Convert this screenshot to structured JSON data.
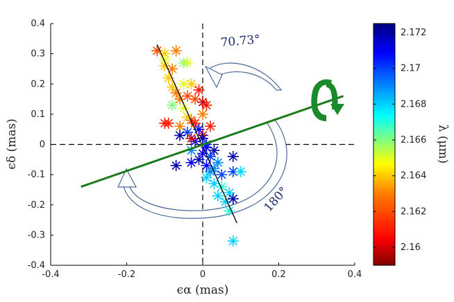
{
  "chart_data": {
    "type": "scatter",
    "xlabel": "ϵα (mas)",
    "ylabel": "ϵδ (mas)",
    "xlim": [
      -0.4,
      0.4
    ],
    "ylim": [
      -0.4,
      0.4
    ],
    "xticks": [
      "-0.4",
      "-0.2",
      "0",
      "0.2",
      "0.4"
    ],
    "yticks": [
      "0.4",
      "0.3",
      "0.2",
      "0.1",
      "0",
      "-0.1",
      "-0.2",
      "-0.3",
      "-0.4"
    ],
    "colorbar": {
      "label": "λ (μm)",
      "range": [
        2.159,
        2.1725
      ],
      "ticks": [
        "2.172",
        "2.17",
        "2.168",
        "2.166",
        "2.164",
        "2.162",
        "2.16"
      ],
      "colors": [
        "#7f0000",
        "#ff0000",
        "#ff8000",
        "#ffff00",
        "#80ff80",
        "#00ffff",
        "#0080ff",
        "#0000ff",
        "#00007f"
      ]
    },
    "fit_line": {
      "x": [
        -0.12,
        0.09
      ],
      "y": [
        0.33,
        -0.26
      ],
      "color": "#000000"
    },
    "rotated_line": {
      "x": [
        -0.32,
        0.37
      ],
      "y": [
        -0.14,
        0.16
      ],
      "color": "#1a7a1a"
    },
    "annotations": [
      {
        "text": "70.73°",
        "x": 0.1,
        "y": 0.33,
        "rotate": -5
      },
      {
        "text": "180°",
        "x": 0.2,
        "y": -0.19,
        "rotate": -48
      }
    ],
    "rotation_symbol_color": "#1a8a2a",
    "points": [
      {
        "x": -0.12,
        "y": 0.31,
        "l": 2.162
      },
      {
        "x": -0.1,
        "y": 0.3,
        "l": 2.164
      },
      {
        "x": -0.1,
        "y": 0.28,
        "l": 2.165
      },
      {
        "x": -0.1,
        "y": 0.26,
        "l": 2.164
      },
      {
        "x": -0.08,
        "y": 0.25,
        "l": 2.163
      },
      {
        "x": -0.07,
        "y": 0.31,
        "l": 2.163
      },
      {
        "x": -0.05,
        "y": 0.27,
        "l": 2.166
      },
      {
        "x": -0.04,
        "y": 0.27,
        "l": 2.165
      },
      {
        "x": -0.09,
        "y": 0.22,
        "l": 2.164
      },
      {
        "x": -0.08,
        "y": 0.19,
        "l": 2.164
      },
      {
        "x": -0.05,
        "y": 0.2,
        "l": 2.165
      },
      {
        "x": -0.07,
        "y": 0.17,
        "l": 2.163
      },
      {
        "x": -0.06,
        "y": 0.15,
        "l": 2.163
      },
      {
        "x": -0.04,
        "y": 0.16,
        "l": 2.162
      },
      {
        "x": -0.08,
        "y": 0.13,
        "l": 2.166
      },
      {
        "x": -0.05,
        "y": 0.12,
        "l": 2.165
      },
      {
        "x": -0.03,
        "y": 0.2,
        "l": 2.164
      },
      {
        "x": -0.02,
        "y": 0.15,
        "l": 2.162
      },
      {
        "x": -0.01,
        "y": 0.18,
        "l": 2.161
      },
      {
        "x": 0.0,
        "y": 0.1,
        "l": 2.163
      },
      {
        "x": -0.03,
        "y": 0.08,
        "l": 2.162
      },
      {
        "x": -0.06,
        "y": 0.06,
        "l": 2.163
      },
      {
        "x": -0.04,
        "y": 0.09,
        "l": 2.164
      },
      {
        "x": -0.02,
        "y": 0.07,
        "l": 2.161
      },
      {
        "x": 0.01,
        "y": 0.13,
        "l": 2.161
      },
      {
        "x": 0.02,
        "y": 0.06,
        "l": 2.161
      },
      {
        "x": 0.0,
        "y": 0.03,
        "l": 2.16
      },
      {
        "x": -0.09,
        "y": 0.07,
        "l": 2.161
      },
      {
        "x": -0.01,
        "y": 0.05,
        "l": 2.171
      },
      {
        "x": -0.04,
        "y": 0.04,
        "l": 2.17
      },
      {
        "x": -0.06,
        "y": 0.03,
        "l": 2.172
      },
      {
        "x": -0.02,
        "y": 0.01,
        "l": 2.171
      },
      {
        "x": 0.0,
        "y": 0.02,
        "l": 2.172
      },
      {
        "x": 0.01,
        "y": 0.0,
        "l": 2.17
      },
      {
        "x": -0.03,
        "y": -0.02,
        "l": 2.169
      },
      {
        "x": 0.0,
        "y": -0.03,
        "l": 2.171
      },
      {
        "x": 0.02,
        "y": -0.04,
        "l": 2.17
      },
      {
        "x": -0.01,
        "y": -0.05,
        "l": 2.172
      },
      {
        "x": 0.01,
        "y": -0.07,
        "l": 2.171
      },
      {
        "x": 0.03,
        "y": -0.02,
        "l": 2.172
      },
      {
        "x": 0.04,
        "y": -0.06,
        "l": 2.169
      },
      {
        "x": 0.02,
        "y": -0.09,
        "l": 2.169
      },
      {
        "x": 0.05,
        "y": -0.1,
        "l": 2.17
      },
      {
        "x": 0.01,
        "y": -0.11,
        "l": 2.168
      },
      {
        "x": 0.03,
        "y": -0.13,
        "l": 2.168
      },
      {
        "x": 0.05,
        "y": -0.14,
        "l": 2.167
      },
      {
        "x": 0.04,
        "y": -0.17,
        "l": 2.168
      },
      {
        "x": 0.07,
        "y": -0.16,
        "l": 2.168
      },
      {
        "x": 0.06,
        "y": -0.19,
        "l": 2.168
      },
      {
        "x": 0.08,
        "y": -0.09,
        "l": 2.17
      },
      {
        "x": 0.1,
        "y": -0.09,
        "l": 2.168
      },
      {
        "x": 0.08,
        "y": -0.18,
        "l": 2.172
      },
      {
        "x": 0.08,
        "y": -0.04,
        "l": 2.172
      },
      {
        "x": 0.07,
        "y": -0.22,
        "l": 2.167
      },
      {
        "x": 0.08,
        "y": -0.32,
        "l": 2.168
      },
      {
        "x": -0.07,
        "y": -0.07,
        "l": 2.172
      },
      {
        "x": -0.03,
        "y": -0.06,
        "l": 2.171
      },
      {
        "x": -0.1,
        "y": 0.07,
        "l": 2.161
      },
      {
        "x": -0.03,
        "y": 0.02,
        "l": 2.16
      },
      {
        "x": 0.0,
        "y": 0.14,
        "l": 2.16
      },
      {
        "x": 0.01,
        "y": -0.01,
        "l": 2.171
      },
      {
        "x": 0.03,
        "y": -0.08,
        "l": 2.169
      }
    ]
  }
}
